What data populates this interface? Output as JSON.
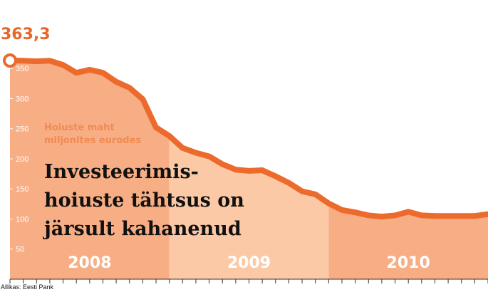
{
  "chart_data": {
    "type": "area",
    "headline": [
      "Investeerimis-",
      "hoiuste tähtsus on",
      "järsult kahanenud"
    ],
    "unit_label": [
      "Hoiuste maht",
      "miljonites eurodes"
    ],
    "start_value_label": "363,3",
    "source": "Allikas: Eesti Pank",
    "yticks": [
      50,
      100,
      150,
      200,
      250,
      300,
      350
    ],
    "ylim": [
      0,
      375
    ],
    "xlim": [
      0,
      36
    ],
    "periods": [
      {
        "label": "2008",
        "start": 0,
        "end": 12,
        "color": "#f8ae85"
      },
      {
        "label": "2009",
        "start": 12,
        "end": 24,
        "color": "#fcc9a6"
      },
      {
        "label": "2010",
        "start": 24,
        "end": 36,
        "color": "#f8ae85"
      }
    ],
    "line_color": "#ec6a2c",
    "grid": false,
    "legend": "none",
    "series": [
      {
        "x": [
          0,
          1,
          2,
          3,
          4,
          5,
          6,
          7,
          8,
          9,
          10,
          11,
          12,
          13,
          14,
          15,
          16,
          17,
          18,
          19,
          20,
          21,
          22,
          23,
          24,
          25,
          26,
          27,
          28,
          29,
          30,
          31,
          32,
          33,
          34,
          35,
          36
        ],
        "values": [
          363.3,
          363,
          362,
          363,
          356,
          343,
          348,
          343,
          328,
          318,
          299,
          252,
          238,
          218,
          210,
          204,
          191,
          182,
          180,
          181,
          171,
          160,
          146,
          141,
          126,
          115,
          111,
          106,
          104,
          106,
          112,
          106,
          105,
          105,
          105,
          105,
          108
        ]
      }
    ]
  }
}
